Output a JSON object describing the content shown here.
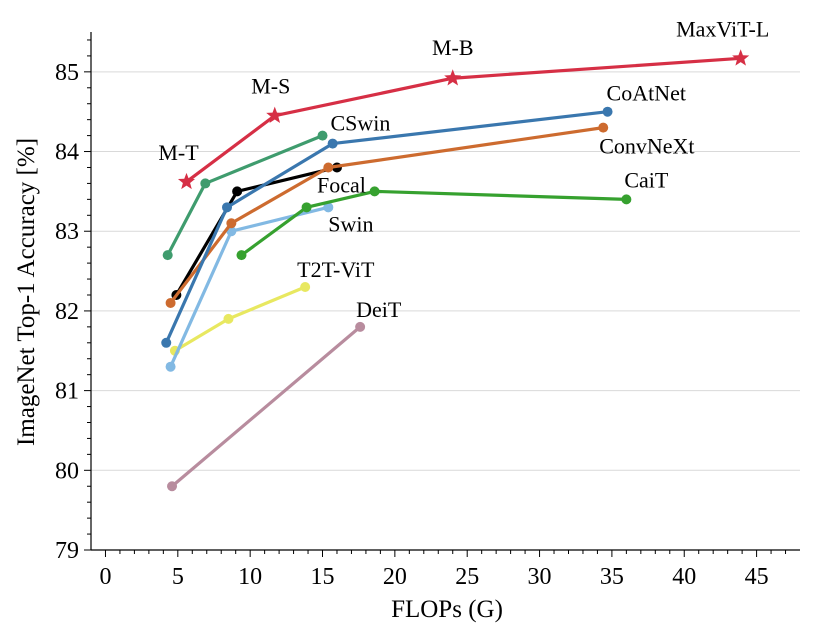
{
  "chart_data": {
    "type": "line",
    "title": "",
    "xlabel": "FLOPs (G)",
    "ylabel": "ImageNet Top-1 Accuracy [%]",
    "xlim": [
      -1,
      48
    ],
    "ylim": [
      79,
      85.5
    ],
    "x_ticks": [
      0,
      5,
      10,
      15,
      20,
      25,
      30,
      35,
      40,
      45
    ],
    "y_ticks": [
      79,
      80,
      81,
      82,
      83,
      84,
      85
    ],
    "grid": "horizontal",
    "legend": "none",
    "series": [
      {
        "name": "MaxViT-L",
        "color": "#d62f45",
        "marker": "star",
        "x": [
          5.6,
          11.7,
          24.0,
          43.9
        ],
        "y": [
          83.62,
          84.45,
          84.92,
          85.17
        ],
        "point_labels": [
          "M-T",
          "M-S",
          "M-B",
          "MaxViT-L"
        ]
      },
      {
        "name": "CoAtNet",
        "color": "#3a77ae",
        "marker": "circle",
        "x": [
          4.2,
          8.4,
          15.7,
          34.7
        ],
        "y": [
          81.6,
          83.3,
          84.1,
          84.5
        ]
      },
      {
        "name": "CSwin",
        "color": "#3f9c6e",
        "marker": "circle",
        "x": [
          4.3,
          6.9,
          15.0
        ],
        "y": [
          82.7,
          83.6,
          84.2
        ]
      },
      {
        "name": "ConvNeXt",
        "color": "#cd6b2f",
        "marker": "circle",
        "x": [
          4.5,
          8.7,
          15.4,
          34.4
        ],
        "y": [
          82.1,
          83.1,
          83.8,
          84.3
        ]
      },
      {
        "name": "Focal",
        "color": "#000000",
        "marker": "circle",
        "x": [
          4.9,
          9.1,
          16.0
        ],
        "y": [
          82.2,
          83.5,
          83.8
        ]
      },
      {
        "name": "CaiT",
        "color": "#36a12f",
        "marker": "circle",
        "x": [
          9.4,
          13.9,
          18.6,
          36.0
        ],
        "y": [
          82.7,
          83.3,
          83.5,
          83.4
        ]
      },
      {
        "name": "Swin",
        "color": "#82b9e3",
        "marker": "circle",
        "x": [
          4.5,
          8.7,
          15.4
        ],
        "y": [
          81.3,
          83.0,
          83.3
        ]
      },
      {
        "name": "T2T-ViT",
        "color": "#e8e860",
        "marker": "circle",
        "x": [
          4.8,
          8.5,
          13.8
        ],
        "y": [
          81.5,
          81.9,
          82.3
        ]
      },
      {
        "name": "DeiT",
        "color": "#b88c9e",
        "marker": "circle",
        "x": [
          4.6,
          17.6
        ],
        "y": [
          79.8,
          81.8
        ]
      }
    ],
    "annotations": [
      {
        "text": "M-T",
        "x": 5.6,
        "y": 83.62
      },
      {
        "text": "M-S",
        "x": 11.7,
        "y": 84.45
      },
      {
        "text": "M-B",
        "x": 24.0,
        "y": 84.92
      },
      {
        "text": "MaxViT-L",
        "x": 43.9,
        "y": 85.17
      },
      {
        "text": "CoAtNet",
        "x": 34.7,
        "y": 84.5
      },
      {
        "text": "CSwin",
        "x": 15.0,
        "y": 84.2
      },
      {
        "text": "ConvNeXt",
        "x": 34.4,
        "y": 84.3
      },
      {
        "text": "Focal",
        "x": 16.0,
        "y": 83.8
      },
      {
        "text": "CaiT",
        "x": 36.0,
        "y": 83.4
      },
      {
        "text": "Swin",
        "x": 15.4,
        "y": 83.3
      },
      {
        "text": "T2T-ViT",
        "x": 13.8,
        "y": 82.3
      },
      {
        "text": "DeiT",
        "x": 17.6,
        "y": 81.8
      }
    ]
  }
}
